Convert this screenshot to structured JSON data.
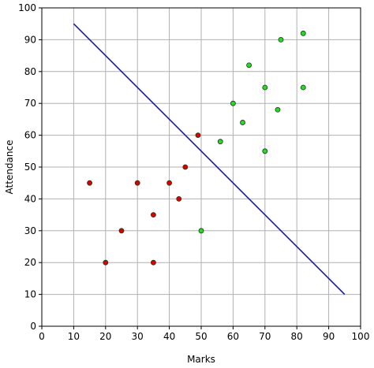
{
  "chart_data": {
    "type": "scatter",
    "title": "",
    "xlabel": "Marks",
    "ylabel": "Attendance",
    "xlim": [
      0,
      100
    ],
    "ylim": [
      0,
      100
    ],
    "xticks": [
      0,
      10,
      20,
      30,
      40,
      50,
      60,
      70,
      80,
      90,
      100
    ],
    "yticks": [
      0,
      10,
      20,
      30,
      40,
      50,
      60,
      70,
      80,
      90,
      100
    ],
    "grid": true,
    "series": [
      {
        "color": "#dd0000",
        "points": [
          {
            "x": 15,
            "y": 45
          },
          {
            "x": 20,
            "y": 20
          },
          {
            "x": 25,
            "y": 30
          },
          {
            "x": 30,
            "y": 45
          },
          {
            "x": 35,
            "y": 35
          },
          {
            "x": 35,
            "y": 20
          },
          {
            "x": 40,
            "y": 45
          },
          {
            "x": 43,
            "y": 40
          },
          {
            "x": 45,
            "y": 50
          },
          {
            "x": 49,
            "y": 60
          }
        ]
      },
      {
        "color": "#22dd22",
        "points": [
          {
            "x": 50,
            "y": 30
          },
          {
            "x": 56,
            "y": 58
          },
          {
            "x": 60,
            "y": 70
          },
          {
            "x": 63,
            "y": 64
          },
          {
            "x": 65,
            "y": 82
          },
          {
            "x": 70,
            "y": 75
          },
          {
            "x": 70,
            "y": 55
          },
          {
            "x": 74,
            "y": 68
          },
          {
            "x": 75,
            "y": 90
          },
          {
            "x": 82,
            "y": 92
          },
          {
            "x": 82,
            "y": 75
          }
        ]
      }
    ],
    "line": {
      "color": "#1a1aa8",
      "x": [
        10,
        95
      ],
      "y": [
        95,
        10
      ]
    }
  }
}
